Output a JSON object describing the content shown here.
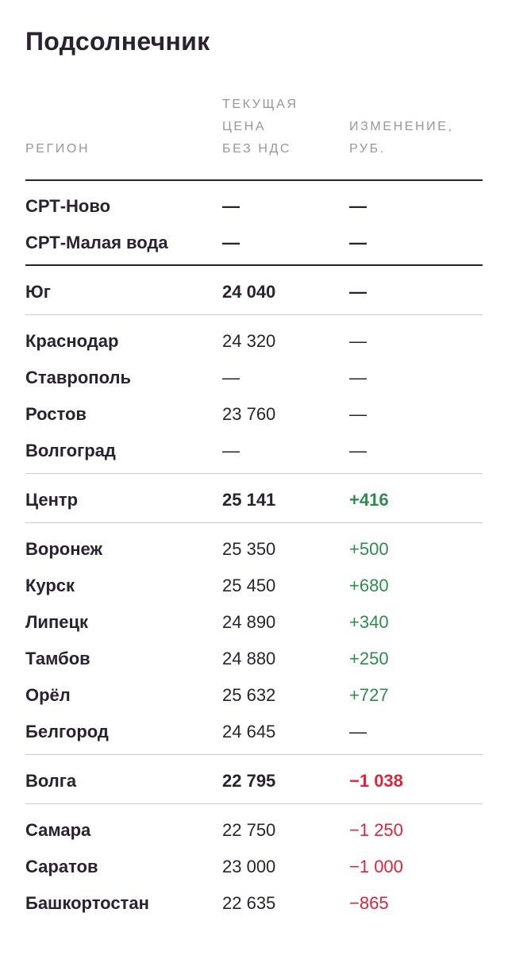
{
  "title": "Подсолнечник",
  "headers": {
    "region": "РЕГИОН",
    "price": "ТЕКУЩАЯ\nЦЕНА\nБЕЗ НДС",
    "change": "ИЗМЕНЕНИЕ,\nРУБ."
  },
  "colors": {
    "positive": "#2e8b4f",
    "negative": "#d8263c",
    "text": "#2a2230",
    "muted": "#9a9599"
  },
  "rows": [
    {
      "region": "СРТ-Ново",
      "price": "—",
      "change": "—",
      "bold": true,
      "trend": "none"
    },
    {
      "region": "СРТ-Малая вода",
      "price": "—",
      "change": "—",
      "bold": true,
      "trend": "none"
    },
    {
      "region": "Юг",
      "price": "24 040",
      "change": "—",
      "bold": true,
      "trend": "none"
    },
    {
      "region": "Краснодар",
      "price": "24 320",
      "change": "—",
      "bold": false,
      "trend": "none"
    },
    {
      "region": "Ставрополь",
      "price": "—",
      "change": "—",
      "bold": false,
      "trend": "none"
    },
    {
      "region": "Ростов",
      "price": "23 760",
      "change": "—",
      "bold": false,
      "trend": "none"
    },
    {
      "region": "Волгоград",
      "price": "—",
      "change": "—",
      "bold": false,
      "trend": "none"
    },
    {
      "region": "Центр",
      "price": "25 141",
      "change": "+416",
      "bold": true,
      "trend": "up"
    },
    {
      "region": "Воронеж",
      "price": "25 350",
      "change": "+500",
      "bold": false,
      "trend": "up"
    },
    {
      "region": "Курск",
      "price": "25 450",
      "change": "+680",
      "bold": false,
      "trend": "up"
    },
    {
      "region": "Липецк",
      "price": "24 890",
      "change": "+340",
      "bold": false,
      "trend": "up"
    },
    {
      "region": "Тамбов",
      "price": "24 880",
      "change": "+250",
      "bold": false,
      "trend": "up"
    },
    {
      "region": "Орёл",
      "price": "25 632",
      "change": "+727",
      "bold": false,
      "trend": "up"
    },
    {
      "region": "Белгород",
      "price": "24 645",
      "change": "—",
      "bold": false,
      "trend": "none"
    },
    {
      "region": "Волга",
      "price": "22 795",
      "change": "−1 038",
      "bold": true,
      "trend": "down"
    },
    {
      "region": "Самара",
      "price": "22 750",
      "change": "−1 250",
      "bold": false,
      "trend": "down"
    },
    {
      "region": "Саратов",
      "price": "23 000",
      "change": "−1 000",
      "bold": false,
      "trend": "down"
    },
    {
      "region": "Башкортостан",
      "price": "22 635",
      "change": "−865",
      "bold": false,
      "trend": "down"
    }
  ]
}
